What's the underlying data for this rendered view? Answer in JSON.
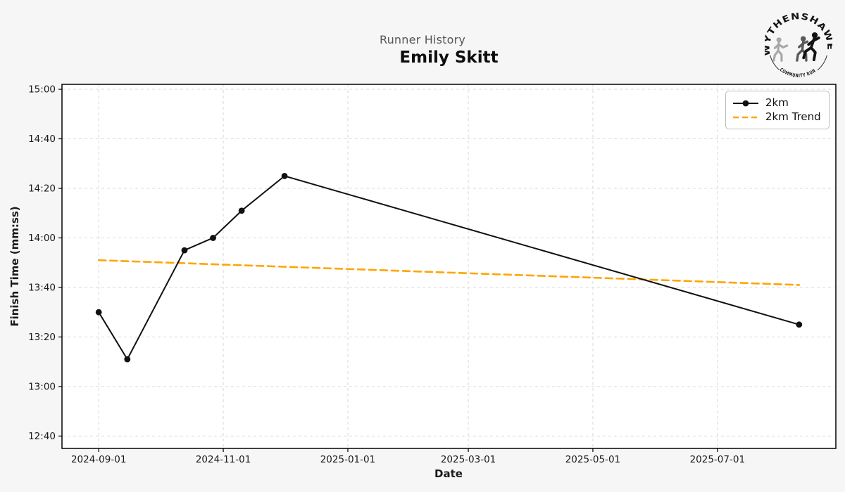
{
  "header": {
    "suptitle": "Runner History",
    "runner_name": "Emily Skitt"
  },
  "logo": {
    "top_text": "WYTHENSHAWE",
    "bottom_text": "COMMUNITY RUN"
  },
  "legend": {
    "entries": [
      "2km",
      "2km Trend"
    ]
  },
  "chart_data": {
    "type": "line",
    "title": "Runner History",
    "subtitle": "Emily Skitt",
    "xlabel": "Date",
    "ylabel": "Finish Time (mm:ss)",
    "grid": true,
    "legend_position": "top-right",
    "x_ticks": [
      "2024-09-01",
      "2024-11-01",
      "2025-01-01",
      "2025-03-01",
      "2025-05-01",
      "2025-07-01"
    ],
    "y_ticks": [
      "12:40",
      "13:00",
      "13:20",
      "13:40",
      "14:00",
      "14:20",
      "14:40",
      "15:00"
    ],
    "xlim": [
      "2024-08-14",
      "2025-08-28"
    ],
    "ylim": [
      "12:35",
      "15:02"
    ],
    "colors": {
      "series": "#111111",
      "trend": "#FFA500",
      "grid": "#d9d9d9",
      "plot_bg": "#ffffff",
      "figure_bg": "#f6f6f6"
    },
    "series": [
      {
        "name": "2km",
        "color": "#111111",
        "style": "solid",
        "marker": "circle",
        "points": [
          {
            "date": "2024-09-01",
            "time": "13:30"
          },
          {
            "date": "2024-09-15",
            "time": "13:11"
          },
          {
            "date": "2024-10-13",
            "time": "13:55"
          },
          {
            "date": "2024-10-27",
            "time": "14:00"
          },
          {
            "date": "2024-11-10",
            "time": "14:11"
          },
          {
            "date": "2024-12-01",
            "time": "14:25"
          },
          {
            "date": "2025-08-10",
            "time": "13:25"
          }
        ]
      },
      {
        "name": "2km Trend",
        "color": "#FFA500",
        "style": "dashed",
        "marker": "none",
        "points": [
          {
            "date": "2024-09-01",
            "time": "13:51"
          },
          {
            "date": "2025-08-10",
            "time": "13:41"
          }
        ]
      }
    ]
  }
}
